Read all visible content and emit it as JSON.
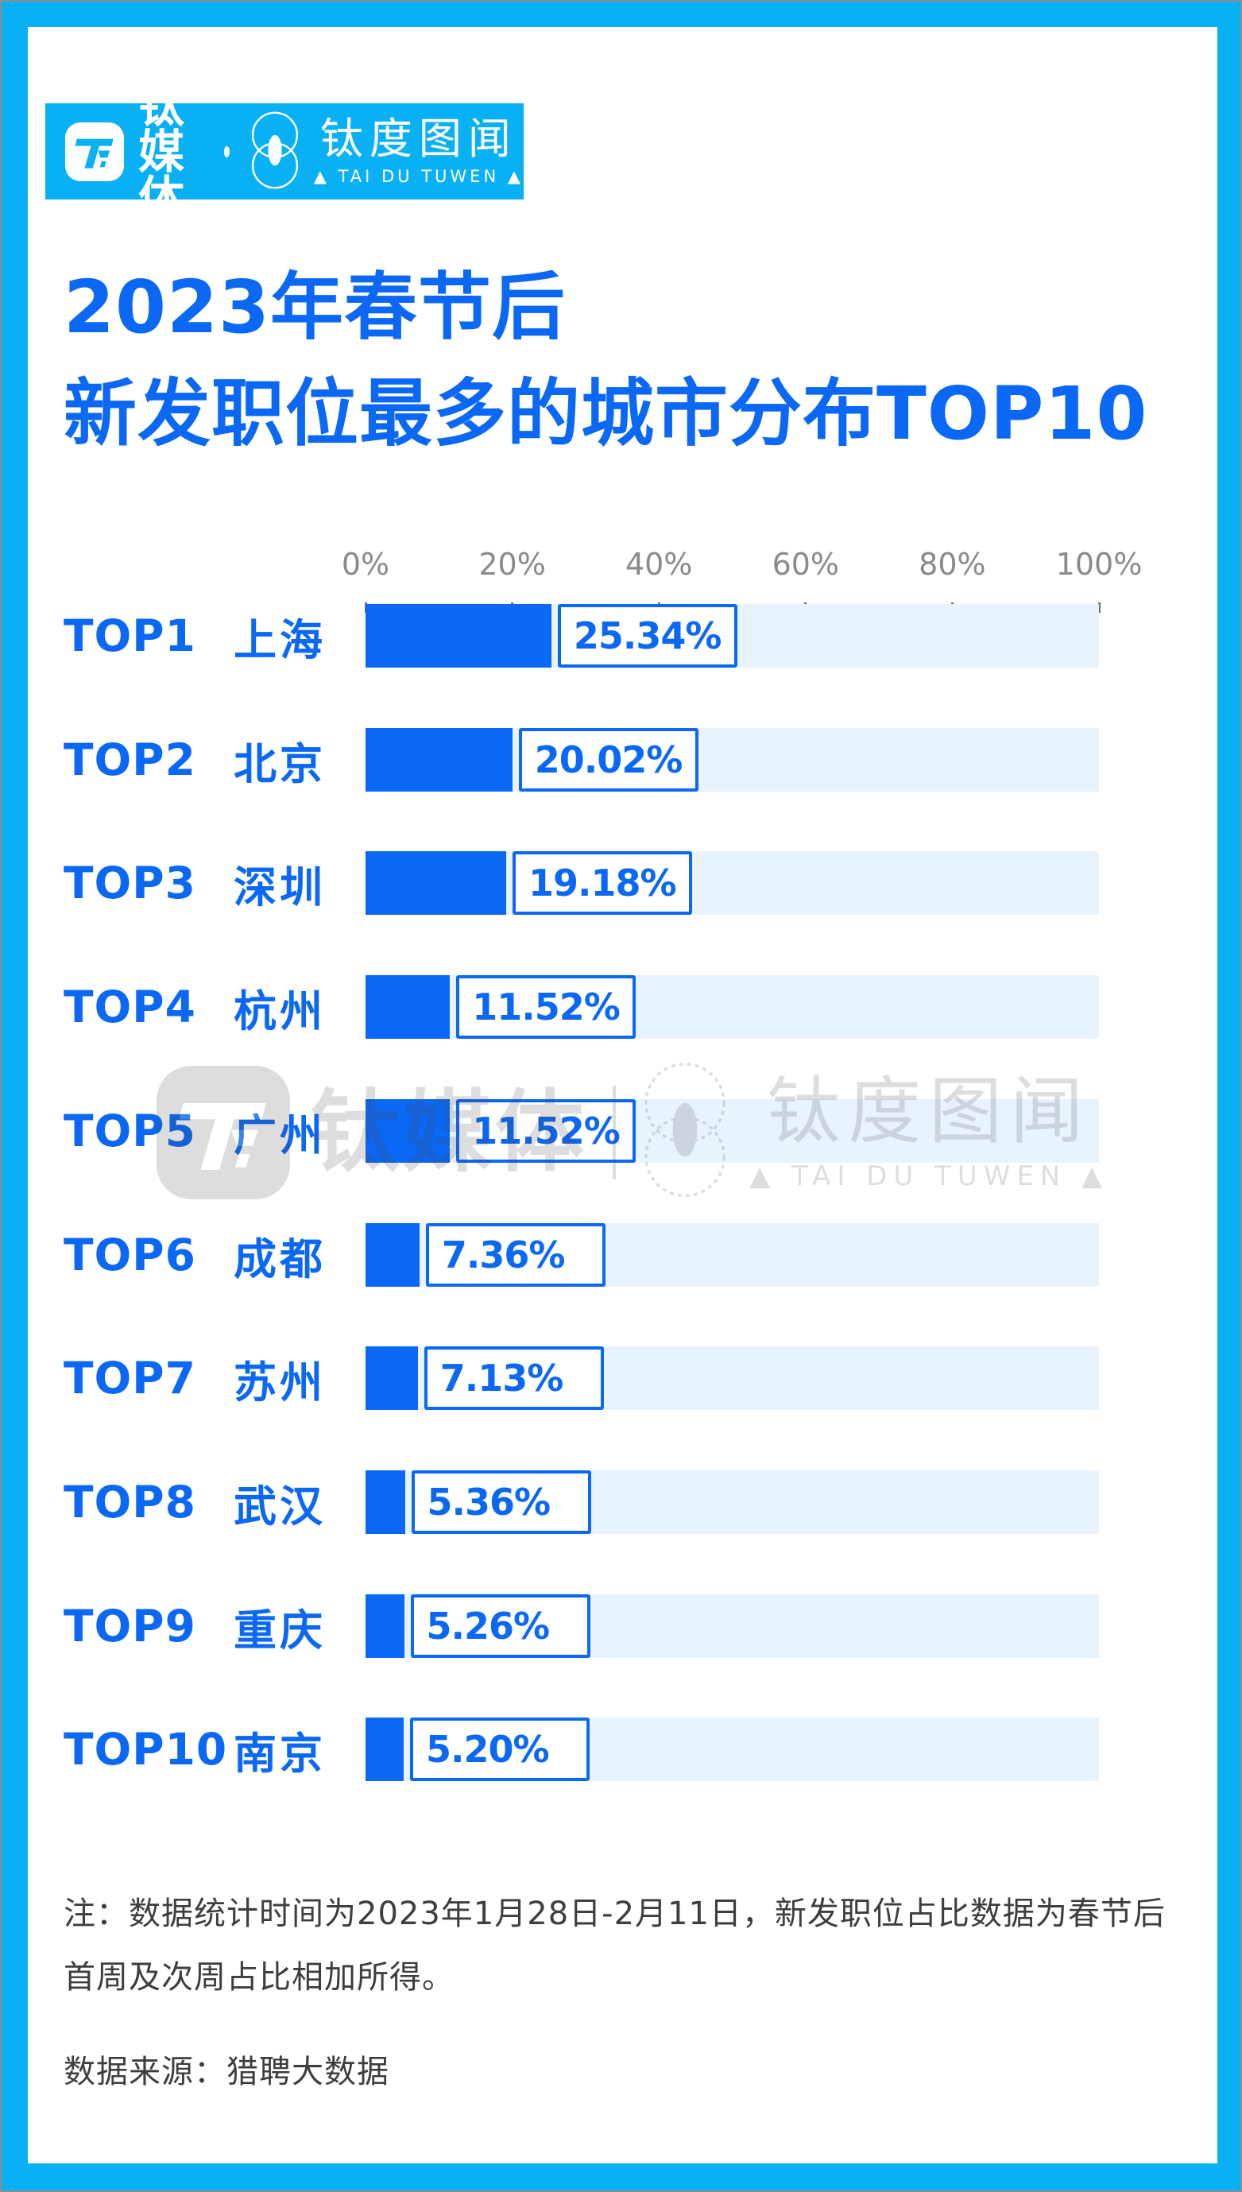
{
  "brand": {
    "tmtpost_name": "钛媒体",
    "separator_dot": "·",
    "taidu_name": "钛度图闻",
    "taidu_sub": "▲ TAI DU TUWEN ▲"
  },
  "title": {
    "line1": "2023年春节后",
    "line2": "新发职位最多的城市分布TOP10"
  },
  "chart_data": {
    "type": "bar",
    "orientation": "horizontal",
    "title": "2023年春节后新发职位最多的城市分布TOP10",
    "ranks": [
      "TOP1",
      "TOP2",
      "TOP3",
      "TOP4",
      "TOP5",
      "TOP6",
      "TOP7",
      "TOP8",
      "TOP9",
      "TOP10"
    ],
    "categories": [
      "上海",
      "北京",
      "深圳",
      "杭州",
      "广州",
      "成都",
      "苏州",
      "武汉",
      "重庆",
      "南京"
    ],
    "values": [
      25.34,
      20.02,
      19.18,
      11.52,
      11.52,
      7.36,
      7.13,
      5.36,
      5.26,
      5.2
    ],
    "labels": [
      "25.34%",
      "20.02%",
      "19.18%",
      "11.52%",
      "11.52%",
      "7.36%",
      "7.13%",
      "5.36%",
      "5.26%",
      "5.20%"
    ],
    "xlim": [
      0,
      100
    ],
    "x_tick_labels": [
      "0%",
      "20%",
      "40%",
      "60%",
      "80%",
      "100%"
    ],
    "x_ticks": [
      0,
      20,
      40,
      60,
      80,
      100
    ],
    "grid": false,
    "legend": false
  },
  "footer": {
    "note_line1": "注：数据统计时间为2023年1月28日-2月11日，新发职位占比数据为春节后",
    "note_line2": "首周及次周占比相加所得。",
    "source": "数据来源：猎聘大数据"
  },
  "colors": {
    "frame_blue": "#09b1f4",
    "royal_blue": "#0b68f5",
    "track_blue": "#e9f3fd",
    "axis_gray": "#8a8a8a",
    "note_gray": "#3e3e3e",
    "watermark_gray": "#4a4a4a"
  }
}
